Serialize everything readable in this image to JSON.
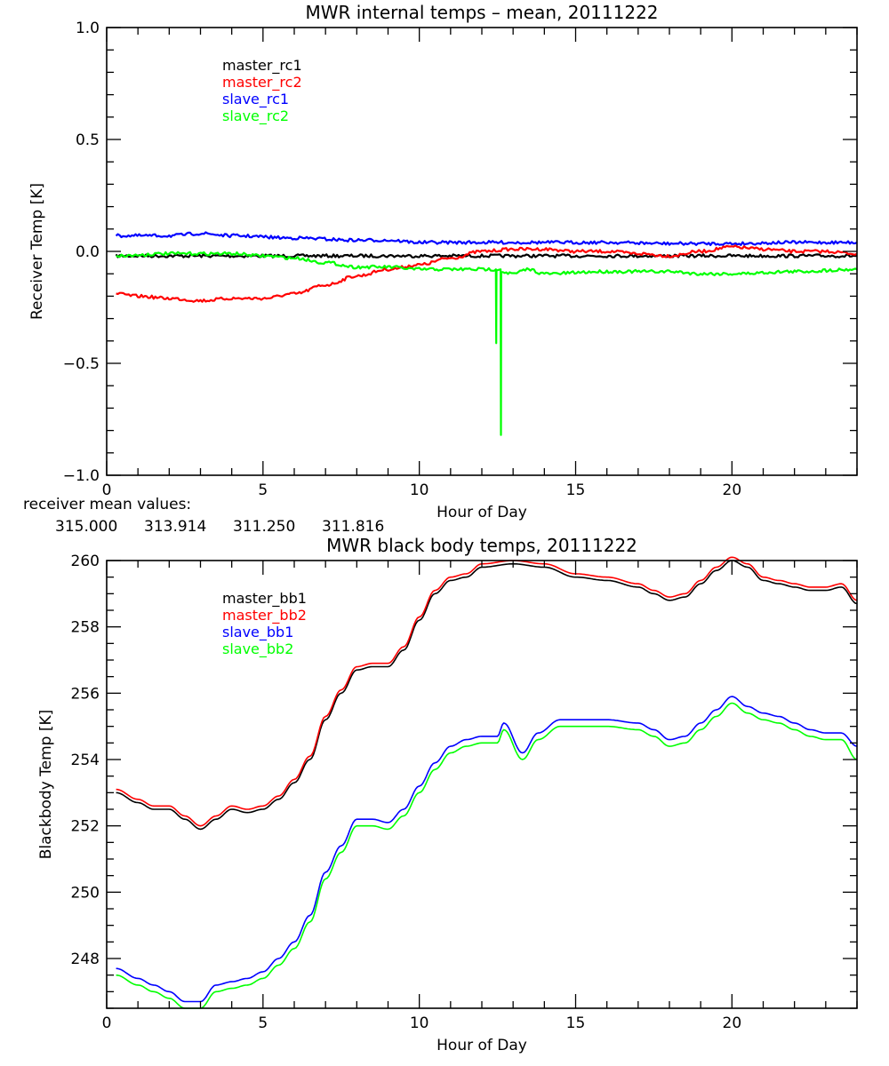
{
  "chart_data": [
    {
      "type": "line",
      "id": "receiver",
      "title": "MWR internal temps – mean, 20111222",
      "xlabel": "Hour of Day",
      "ylabel": "Receiver Temp [K]",
      "xlim": [
        0,
        24
      ],
      "ylim": [
        -1.0,
        1.0
      ],
      "xticks": [
        0,
        5,
        10,
        15,
        20
      ],
      "xtick_labels": [
        "0",
        "5",
        "10",
        "15",
        "20"
      ],
      "x_minor_step": 1,
      "yticks": [
        -1.0,
        -0.5,
        0.0,
        0.5,
        1.0
      ],
      "ytick_labels": [
        "−1.0",
        "−0.5",
        "0.0",
        "0.5",
        "1.0"
      ],
      "y_minor_step": 0.1,
      "grid": false,
      "legend_position": "top-left",
      "series": [
        {
          "name": "master_rc1",
          "color": "#000000",
          "x": [
            0.3,
            2,
            4,
            6,
            8,
            10,
            12,
            14,
            16,
            18,
            20,
            22,
            24
          ],
          "y": [
            -0.02,
            -0.02,
            -0.02,
            -0.02,
            -0.02,
            -0.02,
            -0.02,
            -0.02,
            -0.02,
            -0.02,
            -0.02,
            -0.02,
            -0.02
          ]
        },
        {
          "name": "master_rc2",
          "color": "#ff0000",
          "x": [
            0.3,
            1,
            2,
            3,
            4,
            5,
            6,
            7,
            8,
            9,
            10,
            11,
            12,
            13,
            14,
            15,
            16,
            17,
            18,
            19,
            20,
            21,
            22,
            23,
            24
          ],
          "y": [
            -0.19,
            -0.2,
            -0.21,
            -0.22,
            -0.21,
            -0.21,
            -0.19,
            -0.15,
            -0.11,
            -0.08,
            -0.06,
            -0.03,
            0.0,
            0.01,
            0.01,
            0.0,
            0.0,
            -0.01,
            -0.02,
            0.0,
            0.02,
            0.01,
            0.0,
            0.0,
            -0.01
          ]
        },
        {
          "name": "slave_rc1",
          "color": "#0000ff",
          "x": [
            0.3,
            2,
            3,
            4,
            6,
            8,
            9,
            10,
            12,
            14,
            16,
            18,
            20,
            22,
            24
          ],
          "y": [
            0.07,
            0.07,
            0.08,
            0.07,
            0.06,
            0.05,
            0.05,
            0.04,
            0.04,
            0.04,
            0.04,
            0.035,
            0.035,
            0.04,
            0.04
          ]
        },
        {
          "name": "slave_rc2",
          "color": "#00ff00",
          "x": [
            0.3,
            2,
            3,
            4,
            5,
            6,
            7,
            8,
            9,
            10,
            11,
            12,
            12.45,
            12.46,
            12.47,
            12.6,
            12.61,
            12.62,
            13,
            13.5,
            14,
            16,
            18,
            19,
            20,
            22,
            24
          ],
          "y": [
            -0.02,
            -0.01,
            -0.01,
            -0.01,
            -0.02,
            -0.03,
            -0.05,
            -0.07,
            -0.07,
            -0.08,
            -0.08,
            -0.08,
            -0.08,
            -0.41,
            -0.08,
            -0.08,
            -0.82,
            -0.09,
            -0.1,
            -0.08,
            -0.1,
            -0.09,
            -0.09,
            -0.1,
            -0.1,
            -0.09,
            -0.08
          ]
        }
      ],
      "annotation": {
        "label": "receiver mean values:",
        "values": [
          {
            "text": "315.000",
            "color": "#000000"
          },
          {
            "text": "313.914",
            "color": "#ff0000"
          },
          {
            "text": "311.250",
            "color": "#0000ff"
          },
          {
            "text": "311.816",
            "color": "#00ff00"
          }
        ]
      }
    },
    {
      "type": "line",
      "id": "blackbody",
      "title": "MWR black body temps, 20111222",
      "xlabel": "Hour of Day",
      "ylabel": "Blackbody Temp [K]",
      "xlim": [
        0,
        24
      ],
      "ylim": [
        246.5,
        260
      ],
      "xticks": [
        0,
        5,
        10,
        15,
        20
      ],
      "xtick_labels": [
        "0",
        "5",
        "10",
        "15",
        "20"
      ],
      "x_minor_step": 1,
      "yticks": [
        248,
        250,
        252,
        254,
        256,
        258,
        260
      ],
      "ytick_labels": [
        "248",
        "250",
        "252",
        "254",
        "256",
        "258",
        "260"
      ],
      "y_minor_step": 0.5,
      "grid": false,
      "legend_position": "top-left",
      "series": [
        {
          "name": "master_bb1",
          "color": "#000000",
          "x": [
            0.3,
            1,
            1.5,
            2,
            2.5,
            3,
            3.5,
            4,
            4.5,
            5,
            5.5,
            6,
            6.5,
            7,
            7.5,
            8,
            8.5,
            9,
            9.5,
            10,
            10.5,
            11,
            11.5,
            12,
            13,
            14,
            15,
            16,
            17,
            17.5,
            18,
            18.5,
            19,
            19.5,
            20,
            20.5,
            21,
            21.5,
            22,
            22.5,
            23,
            23.5,
            24
          ],
          "y": [
            253.0,
            252.7,
            252.5,
            252.5,
            252.2,
            251.9,
            252.2,
            252.5,
            252.4,
            252.5,
            252.8,
            253.3,
            254.0,
            255.2,
            256.0,
            256.7,
            256.8,
            256.8,
            257.3,
            258.2,
            259.0,
            259.4,
            259.5,
            259.8,
            259.9,
            259.8,
            259.5,
            259.4,
            259.2,
            259.0,
            258.8,
            258.9,
            259.3,
            259.7,
            260.0,
            259.8,
            259.4,
            259.3,
            259.2,
            259.1,
            259.1,
            259.2,
            258.7
          ]
        },
        {
          "name": "master_bb2",
          "color": "#ff0000",
          "x": [
            0.3,
            1,
            1.5,
            2,
            2.5,
            3,
            3.5,
            4,
            4.5,
            5,
            5.5,
            6,
            6.5,
            7,
            7.5,
            8,
            8.5,
            9,
            9.5,
            10,
            10.5,
            11,
            11.5,
            12,
            13,
            14,
            15,
            16,
            17,
            17.5,
            18,
            18.5,
            19,
            19.5,
            20,
            20.5,
            21,
            21.5,
            22,
            22.5,
            23,
            23.5,
            24
          ],
          "y": [
            253.1,
            252.8,
            252.6,
            252.6,
            252.3,
            252.0,
            252.3,
            252.6,
            252.5,
            252.6,
            252.9,
            253.4,
            254.1,
            255.3,
            256.1,
            256.8,
            256.9,
            256.9,
            257.4,
            258.3,
            259.1,
            259.5,
            259.6,
            259.9,
            260.0,
            259.9,
            259.6,
            259.5,
            259.3,
            259.1,
            258.9,
            259.0,
            259.4,
            259.8,
            260.1,
            259.9,
            259.5,
            259.4,
            259.3,
            259.2,
            259.2,
            259.3,
            258.8
          ]
        },
        {
          "name": "slave_bb1",
          "color": "#0000ff",
          "x": [
            0.3,
            1,
            1.5,
            2,
            2.5,
            3,
            3.5,
            4,
            4.5,
            5,
            5.5,
            6,
            6.5,
            7,
            7.5,
            8,
            8.5,
            9,
            9.5,
            10,
            10.5,
            11,
            11.5,
            12,
            12.5,
            12.7,
            13.3,
            13.8,
            14.5,
            15,
            16,
            17,
            17.5,
            18,
            18.5,
            19,
            19.5,
            20,
            20.5,
            21,
            21.5,
            22,
            22.5,
            23,
            23.5,
            24
          ],
          "y": [
            247.7,
            247.4,
            247.2,
            247.0,
            246.7,
            246.7,
            247.2,
            247.3,
            247.4,
            247.6,
            248.0,
            248.5,
            249.3,
            250.6,
            251.4,
            252.2,
            252.2,
            252.1,
            252.5,
            253.2,
            253.9,
            254.4,
            254.6,
            254.7,
            254.7,
            255.1,
            254.2,
            254.8,
            255.2,
            255.2,
            255.2,
            255.1,
            254.9,
            254.6,
            254.7,
            255.1,
            255.5,
            255.9,
            255.6,
            255.4,
            255.3,
            255.1,
            254.9,
            254.8,
            254.8,
            254.4
          ]
        },
        {
          "name": "slave_bb2",
          "color": "#00ff00",
          "x": [
            0.3,
            1,
            1.5,
            2,
            2.5,
            3,
            3.5,
            4,
            4.5,
            5,
            5.5,
            6,
            6.5,
            7,
            7.5,
            8,
            8.5,
            9,
            9.5,
            10,
            10.5,
            11,
            11.5,
            12,
            12.5,
            12.7,
            13.3,
            13.8,
            14.5,
            15,
            16,
            17,
            17.5,
            18,
            18.5,
            19,
            19.5,
            20,
            20.5,
            21,
            21.5,
            22,
            22.5,
            23,
            23.5,
            24
          ],
          "y": [
            247.5,
            247.2,
            247.0,
            246.8,
            246.5,
            246.5,
            247.0,
            247.1,
            247.2,
            247.4,
            247.8,
            248.3,
            249.1,
            250.4,
            251.2,
            252.0,
            252.0,
            251.9,
            252.3,
            253.0,
            253.7,
            254.2,
            254.4,
            254.5,
            254.5,
            254.9,
            254.0,
            254.6,
            255.0,
            255.0,
            255.0,
            254.9,
            254.7,
            254.4,
            254.5,
            254.9,
            255.3,
            255.7,
            255.4,
            255.2,
            255.1,
            254.9,
            254.7,
            254.6,
            254.6,
            254.0
          ]
        }
      ]
    }
  ]
}
